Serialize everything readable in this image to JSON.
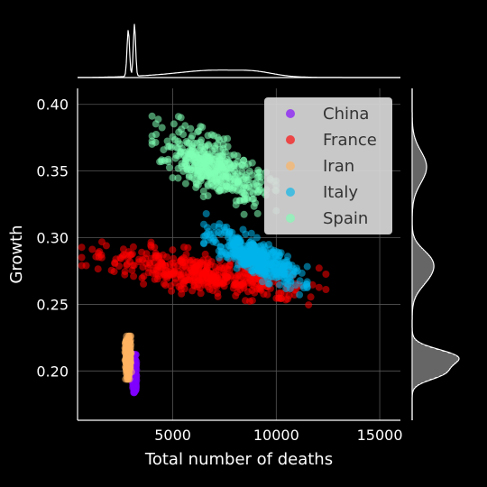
{
  "chart_data": {
    "type": "scatter",
    "title": "",
    "xlabel": "Total number of deaths",
    "ylabel": "Growth",
    "xlim": [
      400,
      16000
    ],
    "ylim": [
      0.163,
      0.412
    ],
    "xticks": [
      5000,
      10000,
      15000
    ],
    "yticks": [
      0.2,
      0.25,
      0.3,
      0.35,
      0.4
    ],
    "xtick_labels": [
      "5000",
      "10000",
      "15000"
    ],
    "ytick_labels": [
      "0.20",
      "0.25",
      "0.30",
      "0.35",
      "0.40"
    ],
    "grid": true,
    "legend_position": "top-right",
    "marginal_plots": "kde-and-histogram",
    "series": [
      {
        "name": "China",
        "color": "#8000ff",
        "x_range": [
          2950,
          3250
        ],
        "y_range": [
          0.183,
          0.213
        ],
        "x_center": 3150,
        "y_center": 0.198
      },
      {
        "name": "France",
        "color": "#ff0000",
        "x_range": [
          2000,
          13800
        ],
        "y_range": [
          0.25,
          0.297
        ],
        "x_center": 6500,
        "y_center": 0.273
      },
      {
        "name": "Iran",
        "color": "#ffb360",
        "x_range": [
          2650,
          3100
        ],
        "y_range": [
          0.192,
          0.226
        ],
        "x_center": 2850,
        "y_center": 0.21
      },
      {
        "name": "Italy",
        "color": "#00b5eb",
        "x_range": [
          6500,
          11500
        ],
        "y_range": [
          0.263,
          0.308
        ],
        "x_center": 9000,
        "y_center": 0.285
      },
      {
        "name": "Spain",
        "color": "#80ffb4",
        "x_range": [
          4800,
          10800
        ],
        "y_range": [
          0.325,
          0.394
        ],
        "x_center": 7000,
        "y_center": 0.353
      }
    ]
  }
}
